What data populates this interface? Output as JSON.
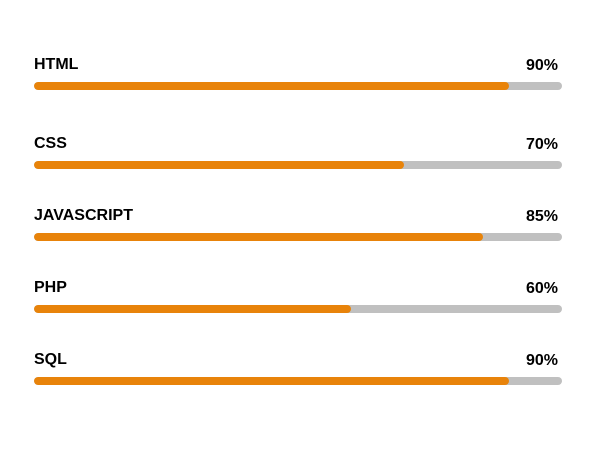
{
  "colors": {
    "fill": "#e8830a",
    "track": "#c0c0c0",
    "text": "#000000",
    "background": "#ffffff"
  },
  "skills": [
    {
      "label": "HTML",
      "value_text": "90%",
      "progress": 0.9
    },
    {
      "label": "CSS",
      "value_text": "70%",
      "progress": 0.7
    },
    {
      "label": "JAVASCRIPT",
      "value_text": "85%",
      "progress": 0.85
    },
    {
      "label": "PHP",
      "value_text": "60%",
      "progress": 0.6
    },
    {
      "label": "SQL",
      "value_text": "90%",
      "progress": 0.9
    }
  ]
}
